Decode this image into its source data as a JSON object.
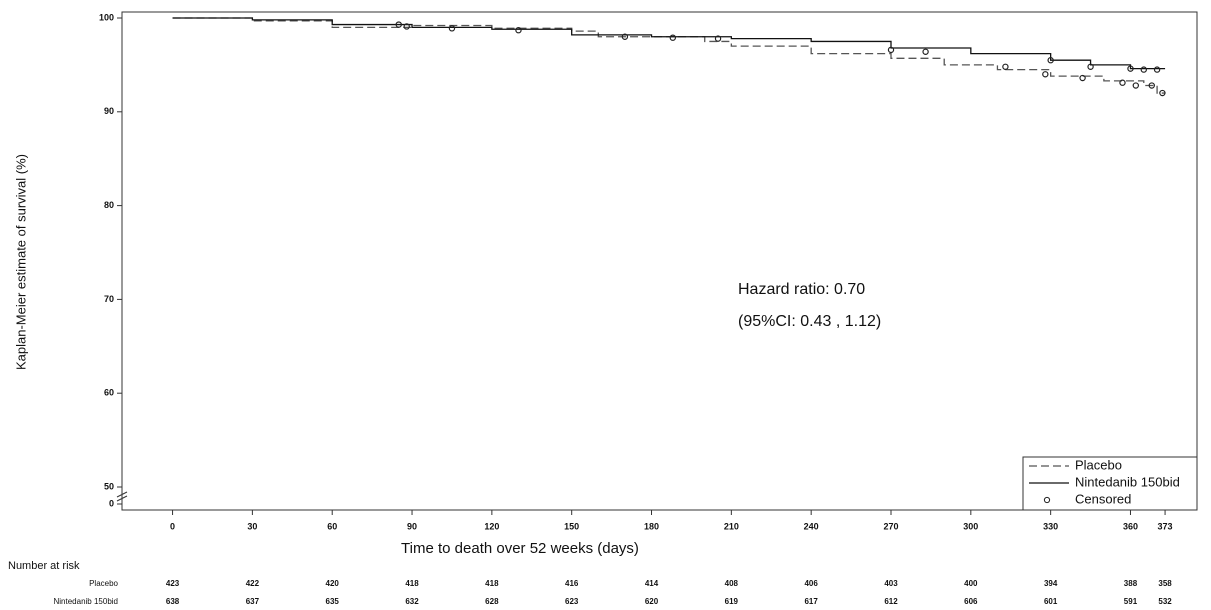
{
  "chart_data": {
    "type": "step",
    "xlabel": "Time to death over 52 weeks (days)",
    "ylabel": "Kaplan-Meier estimate of survival (%)",
    "xlim": [
      -19,
      385
    ],
    "xticks": [
      0,
      30,
      60,
      90,
      120,
      150,
      180,
      210,
      240,
      270,
      300,
      330,
      360,
      373
    ],
    "ylim": [
      0,
      100
    ],
    "yticks": [
      0,
      50,
      60,
      70,
      80,
      90,
      100
    ],
    "ybreak": [
      0,
      50
    ],
    "legend": "bottom-right",
    "annotations": [
      "Hazard ratio: 0.70",
      "(95%CI: 0.43 , 1.12)"
    ],
    "series": [
      {
        "name": "Placebo",
        "color": "#555555",
        "style": "dashed",
        "x": [
          0,
          30,
          60,
          90,
          120,
          150,
          160,
          200,
          210,
          240,
          270,
          290,
          310,
          330,
          350,
          365,
          370,
          373
        ],
        "values": [
          100,
          99.7,
          99.0,
          99.2,
          98.9,
          98.6,
          98.0,
          97.5,
          97.0,
          96.2,
          95.7,
          95.0,
          94.5,
          93.8,
          93.3,
          92.8,
          92.0,
          92.0
        ]
      },
      {
        "name": "Nintedanib 150bid",
        "color": "#111111",
        "style": "solid",
        "x": [
          0,
          30,
          60,
          90,
          120,
          150,
          180,
          210,
          240,
          270,
          300,
          330,
          345,
          360,
          373
        ],
        "values": [
          100,
          99.8,
          99.3,
          99.0,
          98.8,
          98.2,
          98.0,
          97.8,
          97.5,
          96.8,
          96.2,
          95.5,
          95.0,
          94.6,
          94.6
        ]
      },
      {
        "name": "Censored",
        "color": "#222222",
        "style": "points",
        "x": [
          85,
          88,
          105,
          130,
          170,
          188,
          205,
          270,
          283,
          330,
          345,
          360,
          365,
          370,
          313,
          328,
          342,
          357,
          362,
          368,
          372
        ],
        "values": [
          99.3,
          99.1,
          98.9,
          98.7,
          98.0,
          97.9,
          97.8,
          96.6,
          96.4,
          95.5,
          94.8,
          94.6,
          94.5,
          94.5,
          94.8,
          94.0,
          93.6,
          93.1,
          92.8,
          92.8,
          92.0
        ]
      }
    ],
    "risk_table": {
      "title": "Number at risk",
      "rows": [
        {
          "name": "Placebo",
          "values": [
            423,
            422,
            420,
            418,
            418,
            416,
            414,
            408,
            406,
            403,
            400,
            394,
            388,
            358
          ]
        },
        {
          "name": "Nintedanib 150bid",
          "values": [
            638,
            637,
            635,
            632,
            628,
            623,
            620,
            619,
            617,
            612,
            606,
            601,
            591,
            532
          ]
        }
      ]
    }
  }
}
